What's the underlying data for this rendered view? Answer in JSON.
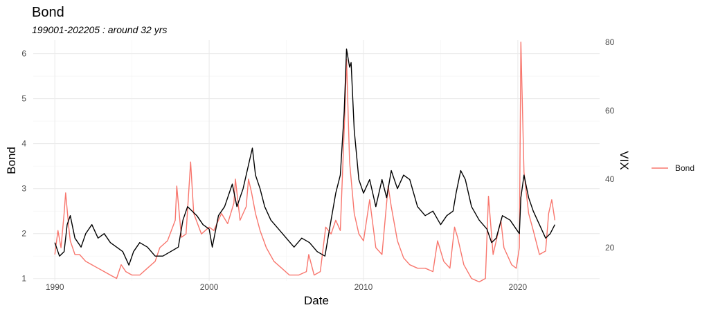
{
  "chart_data": {
    "type": "line",
    "title": "Bond",
    "subtitle": "199001-202205 : around 32 yrs",
    "xlabel": "Date",
    "ylabel": "Bond",
    "y2label": "VIX",
    "x_ticks": [
      "1990",
      "2000",
      "2010",
      "2020"
    ],
    "y_ticks": [
      "1",
      "2",
      "3",
      "4",
      "5",
      "6"
    ],
    "y2_ticks": [
      "20",
      "40",
      "60",
      "80"
    ],
    "xlim": [
      1988.6,
      2025.3
    ],
    "ylim": [
      0.95,
      6.3
    ],
    "y2lim": [
      10.3,
      80.6
    ],
    "grid": true,
    "legend_position": "right",
    "legend": [
      {
        "label": "Bond",
        "color": "#F8766D"
      }
    ],
    "series": [
      {
        "name": "Bond",
        "axis": "left",
        "color": "#000000",
        "x": [
          1990.0,
          1990.3,
          1990.6,
          1990.8,
          1991.0,
          1991.3,
          1991.7,
          1992.0,
          1992.4,
          1992.8,
          1993.2,
          1993.6,
          1994.0,
          1994.4,
          1994.8,
          1995.1,
          1995.5,
          1996.0,
          1996.5,
          1997.0,
          1997.5,
          1998.0,
          1998.3,
          1998.6,
          1998.9,
          1999.2,
          1999.6,
          2000.0,
          2000.2,
          2000.6,
          2001.0,
          2001.5,
          2001.8,
          2002.2,
          2002.6,
          2002.8,
          2003.0,
          2003.3,
          2003.6,
          2004.0,
          2004.5,
          2005.0,
          2005.5,
          2006.0,
          2006.5,
          2007.0,
          2007.5,
          2007.8,
          2008.2,
          2008.5,
          2008.75,
          2008.9,
          2009.1,
          2009.2,
          2009.4,
          2009.7,
          2010.0,
          2010.4,
          2010.8,
          2011.2,
          2011.5,
          2011.8,
          2012.2,
          2012.6,
          2013.0,
          2013.5,
          2014.0,
          2014.5,
          2015.0,
          2015.4,
          2015.8,
          2016.0,
          2016.3,
          2016.6,
          2017.0,
          2017.5,
          2018.0,
          2018.3,
          2018.6,
          2019.0,
          2019.5,
          2019.9,
          2020.1,
          2020.2,
          2020.4,
          2020.7,
          2021.0,
          2021.4,
          2021.8,
          2022.1,
          2022.4
        ],
        "y": [
          1.8,
          1.5,
          1.6,
          2.2,
          2.4,
          1.9,
          1.7,
          2.0,
          2.2,
          1.9,
          2.0,
          1.8,
          1.7,
          1.6,
          1.3,
          1.6,
          1.8,
          1.7,
          1.5,
          1.5,
          1.6,
          1.7,
          2.3,
          2.6,
          2.5,
          2.4,
          2.2,
          2.1,
          1.7,
          2.4,
          2.6,
          3.1,
          2.6,
          3.0,
          3.6,
          3.9,
          3.3,
          3.0,
          2.6,
          2.3,
          2.1,
          1.9,
          1.7,
          1.9,
          1.8,
          1.6,
          1.5,
          2.1,
          2.9,
          3.3,
          4.7,
          6.1,
          5.7,
          5.8,
          4.3,
          3.2,
          2.9,
          3.2,
          2.6,
          3.2,
          2.8,
          3.4,
          3.0,
          3.3,
          3.2,
          2.6,
          2.4,
          2.5,
          2.2,
          2.4,
          2.5,
          2.9,
          3.4,
          3.2,
          2.6,
          2.3,
          2.1,
          1.8,
          1.9,
          2.4,
          2.3,
          2.1,
          2.0,
          2.8,
          3.3,
          2.8,
          2.5,
          2.2,
          1.9,
          2.0,
          2.2
        ]
      },
      {
        "name": "VIX",
        "axis": "right",
        "color": "#F8766D",
        "x": [
          1990.0,
          1990.2,
          1990.4,
          1990.6,
          1990.7,
          1990.9,
          1991.0,
          1991.3,
          1991.6,
          1992.0,
          1992.4,
          1992.8,
          1993.2,
          1993.6,
          1994.0,
          1994.3,
          1994.6,
          1995.0,
          1995.5,
          1996.0,
          1996.5,
          1996.8,
          1997.3,
          1997.8,
          1997.9,
          1998.2,
          1998.5,
          1998.7,
          1998.8,
          1999.0,
          1999.5,
          2000.0,
          2000.3,
          2000.8,
          2001.2,
          2001.6,
          2001.7,
          2002.0,
          2002.4,
          2002.55,
          2002.75,
          2003.0,
          2003.3,
          2003.7,
          2004.2,
          2004.7,
          2005.2,
          2005.8,
          2006.3,
          2006.45,
          2006.8,
          2007.2,
          2007.55,
          2007.9,
          2008.2,
          2008.5,
          2008.8,
          2008.9,
          2009.1,
          2009.4,
          2009.7,
          2010.0,
          2010.4,
          2010.8,
          2011.2,
          2011.6,
          2011.8,
          2012.2,
          2012.6,
          2013.0,
          2013.5,
          2014.0,
          2014.5,
          2014.8,
          2015.2,
          2015.6,
          2015.9,
          2016.1,
          2016.5,
          2017.0,
          2017.5,
          2017.9,
          2018.1,
          2018.4,
          2018.9,
          2019.1,
          2019.6,
          2019.9,
          2020.1,
          2020.2,
          2020.4,
          2020.7,
          2021.0,
          2021.4,
          2021.8,
          2022.0,
          2022.2,
          2022.4
        ],
        "y": [
          18,
          25,
          20,
          30,
          36,
          26,
          22,
          18,
          18,
          16,
          15,
          14,
          13,
          12,
          11,
          15,
          13,
          12,
          12,
          14,
          16,
          20,
          22,
          28,
          38,
          23,
          24,
          38,
          45,
          30,
          24,
          26,
          25,
          30,
          27,
          33,
          40,
          28,
          32,
          40,
          36,
          30,
          25,
          20,
          16,
          14,
          12,
          12,
          13,
          18,
          12,
          13,
          26,
          24,
          28,
          25,
          60,
          75,
          45,
          30,
          24,
          22,
          34,
          20,
          18,
          38,
          32,
          22,
          17,
          15,
          14,
          14,
          13,
          22,
          16,
          14,
          26,
          23,
          15,
          11,
          10,
          11,
          35,
          18,
          28,
          20,
          15,
          14,
          20,
          80,
          42,
          30,
          25,
          18,
          19,
          30,
          34,
          28
        ]
      }
    ]
  }
}
